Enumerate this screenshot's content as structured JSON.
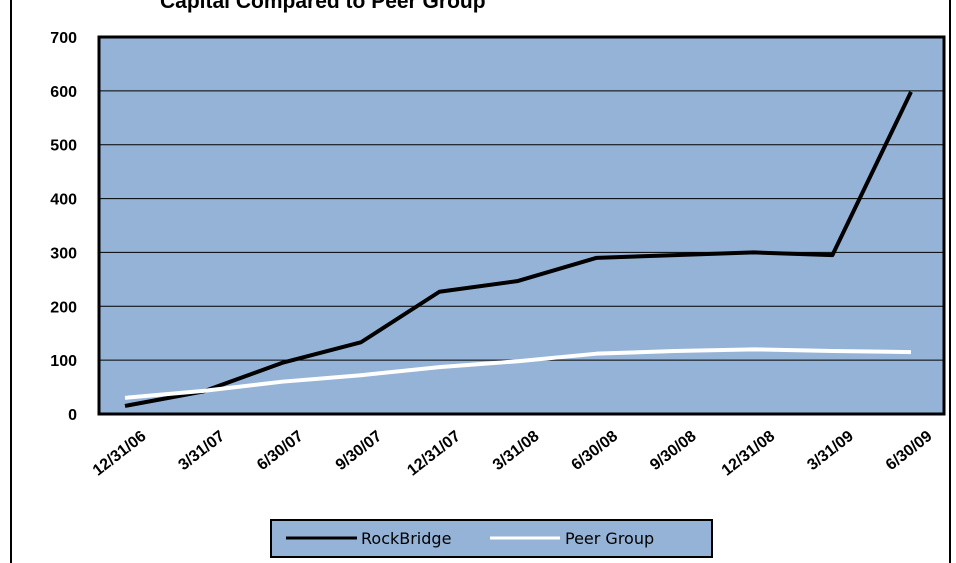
{
  "colors": {
    "plot_bg": "#95b3d7",
    "frame": "#000000",
    "gridline": "#000000",
    "rockbridge": "#000000",
    "peer_group": "#ffffff"
  },
  "chart_data": {
    "type": "line",
    "title": "Capital Compared to Peer Group",
    "categories": [
      "12/31/06",
      "3/31/07",
      "6/30/07",
      "9/30/07",
      "12/31/07",
      "3/31/08",
      "6/30/08",
      "9/30/08",
      "12/31/08",
      "3/31/09",
      "6/30/09"
    ],
    "series": [
      {
        "name": "RockBridge",
        "color": "#000000",
        "values": [
          15,
          42,
          95,
          133,
          227,
          247,
          290,
          295,
          300,
          295,
          598
        ]
      },
      {
        "name": "Peer Group",
        "color": "#ffffff",
        "values": [
          30,
          43,
          60,
          72,
          87,
          98,
          112,
          117,
          120,
          117,
          115
        ]
      }
    ],
    "ylim": [
      0,
      700
    ],
    "yticks": [
      0,
      100,
      200,
      300,
      400,
      500,
      600,
      700
    ],
    "grid": true,
    "legend": "bottom-center"
  }
}
